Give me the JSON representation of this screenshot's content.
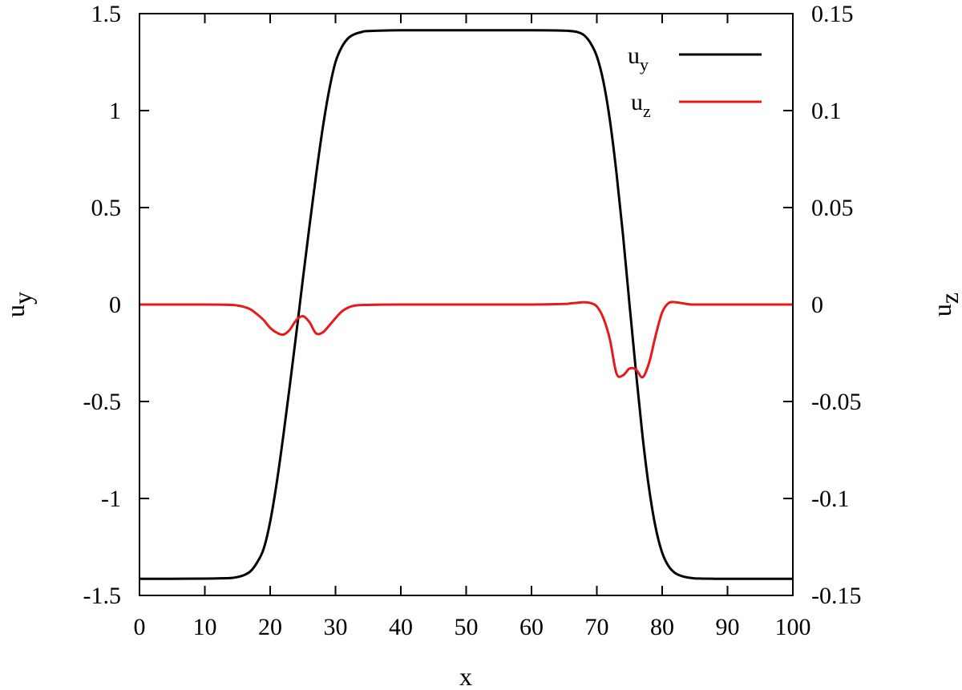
{
  "chart_data": {
    "type": "line",
    "xlabel": "x",
    "ylabel_left": "u",
    "ylabel_left_sub": "y",
    "ylabel_right": "u",
    "ylabel_right_sub": "z",
    "xlim": [
      0,
      100
    ],
    "ylim_left": [
      -1.5,
      1.5
    ],
    "ylim_right": [
      -0.15,
      0.15
    ],
    "grid": false,
    "legend_position": "top-right",
    "x_ticks": [
      0,
      10,
      20,
      30,
      40,
      50,
      60,
      70,
      80,
      90,
      100
    ],
    "y_left_ticks": [
      -1.5,
      -1,
      -0.5,
      0,
      0.5,
      1,
      1.5
    ],
    "y_right_ticks": [
      -0.15,
      -0.1,
      -0.05,
      0,
      0.05,
      0.1,
      0.15
    ],
    "series": [
      {
        "name": "u",
        "name_sub": "y",
        "axis": "left",
        "color": "#000000",
        "x": [
          0,
          5,
          10,
          12,
          14,
          15,
          16,
          17,
          18,
          19,
          20,
          21,
          22,
          23,
          24,
          25,
          26,
          27,
          28,
          29,
          30,
          31,
          32,
          33,
          34,
          35,
          40,
          50,
          60,
          65,
          66,
          67,
          68,
          69,
          70,
          71,
          72,
          73,
          74,
          75,
          76,
          77,
          78,
          79,
          80,
          81,
          82,
          83,
          84,
          85,
          86,
          88,
          90,
          95,
          100
        ],
        "y": [
          -1.414,
          -1.414,
          -1.413,
          -1.412,
          -1.41,
          -1.405,
          -1.395,
          -1.375,
          -1.33,
          -1.26,
          -1.12,
          -0.92,
          -0.68,
          -0.42,
          -0.15,
          0.13,
          0.4,
          0.66,
          0.9,
          1.1,
          1.25,
          1.33,
          1.375,
          1.395,
          1.405,
          1.41,
          1.414,
          1.414,
          1.414,
          1.412,
          1.41,
          1.405,
          1.39,
          1.35,
          1.28,
          1.15,
          0.95,
          0.68,
          0.36,
          0.0,
          -0.35,
          -0.68,
          -0.95,
          -1.15,
          -1.28,
          -1.35,
          -1.385,
          -1.4,
          -1.408,
          -1.412,
          -1.413,
          -1.414,
          -1.414,
          -1.414,
          -1.414
        ]
      },
      {
        "name": "u",
        "name_sub": "z",
        "axis": "right",
        "color": "#e41a1c",
        "x": [
          0,
          10,
          14,
          15,
          16,
          17,
          18,
          19,
          20,
          21,
          22,
          23,
          24,
          25,
          26,
          27,
          28,
          29,
          30,
          31,
          32,
          33,
          35,
          40,
          50,
          60,
          65,
          66,
          67,
          68,
          69,
          70,
          71,
          72,
          73,
          74,
          75,
          76,
          77,
          78,
          79,
          80,
          81,
          82,
          83,
          84,
          85,
          90,
          100
        ],
        "y": [
          0,
          0,
          -0.0002,
          -0.0005,
          -0.0012,
          -0.0025,
          -0.005,
          -0.008,
          -0.012,
          -0.0145,
          -0.0155,
          -0.013,
          -0.008,
          -0.006,
          -0.009,
          -0.0148,
          -0.0145,
          -0.011,
          -0.007,
          -0.0035,
          -0.0015,
          -0.0005,
          -0.0002,
          0,
          0,
          0,
          0.0003,
          0.0006,
          0.0009,
          0.0012,
          0.0008,
          -0.001,
          -0.007,
          -0.018,
          -0.0355,
          -0.0365,
          -0.033,
          -0.0335,
          -0.0375,
          -0.03,
          -0.016,
          -0.004,
          0.0008,
          0.0012,
          0.0007,
          0.0002,
          0,
          0,
          0
        ]
      }
    ]
  }
}
